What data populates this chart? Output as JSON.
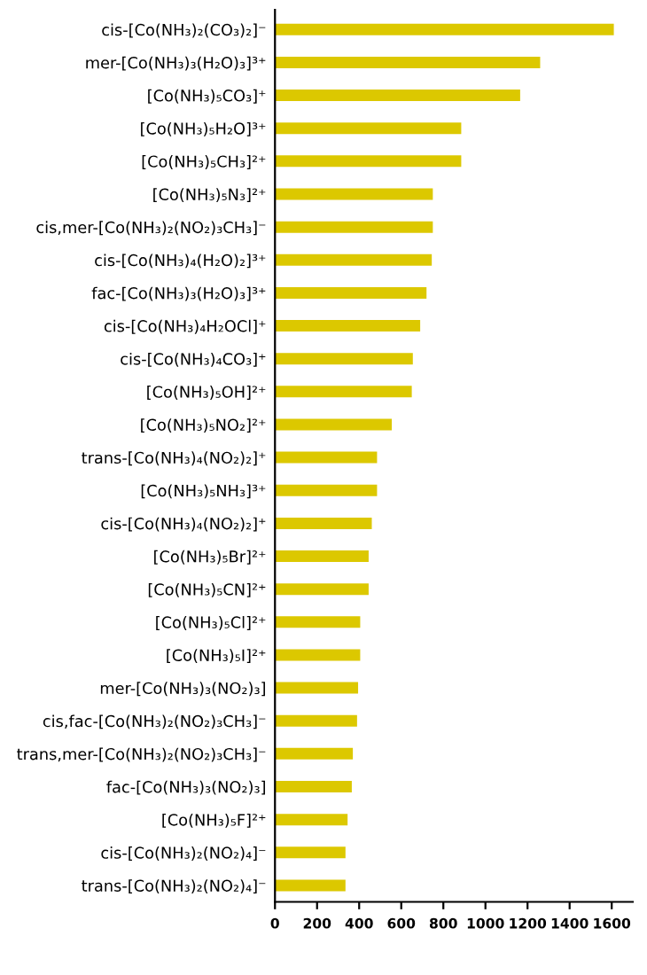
{
  "chart_data": {
    "type": "bar",
    "orientation": "horizontal",
    "color": "#dcc800",
    "categories": [
      "cis-[Co(NH₃)₂(CO₃)₂]⁻",
      "mer-[Co(NH₃)₃(H₂O)₃]³⁺",
      "[Co(NH₃)₅CO₃]⁺",
      "[Co(NH₃)₅H₂O]³⁺",
      "[Co(NH₃)₅CH₃]²⁺",
      "[Co(NH₃)₅N₃]²⁺",
      "cis,mer-[Co(NH₃)₂(NO₂)₃CH₃]⁻",
      "cis-[Co(NH₃)₄(H₂O)₂]³⁺",
      "fac-[Co(NH₃)₃(H₂O)₃]³⁺",
      "cis-[Co(NH₃)₄H₂OCl]⁺",
      "cis-[Co(NH₃)₄CO₃]⁺",
      "[Co(NH₃)₅OH]²⁺",
      "[Co(NH₃)₅NO₂]²⁺",
      "trans-[Co(NH₃)₄(NO₂)₂]⁺",
      "[Co(NH₃)₅NH₃]³⁺",
      "cis-[Co(NH₃)₄(NO₂)₂]⁺",
      "[Co(NH₃)₅Br]²⁺",
      "[Co(NH₃)₅CN]²⁺",
      "[Co(NH₃)₅Cl]²⁺",
      "[Co(NH₃)₅I]²⁺",
      "mer-[Co(NH₃)₃(NO₂)₃]",
      "cis,fac-[Co(NH₃)₂(NO₂)₃CH₃]⁻",
      "trans,mer-[Co(NH₃)₂(NO₂)₃CH₃]⁻",
      "fac-[Co(NH₃)₃(NO₂)₃]",
      "[Co(NH₃)₅F]²⁺",
      "cis-[Co(NH₃)₂(NO₂)₄]⁻",
      "trans-[Co(NH₃)₂(NO₂)₄]⁻"
    ],
    "values": [
      1610,
      1260,
      1165,
      885,
      885,
      750,
      750,
      745,
      720,
      690,
      655,
      650,
      555,
      485,
      485,
      460,
      445,
      445,
      405,
      405,
      395,
      390,
      370,
      365,
      345,
      335,
      335
    ],
    "xlim": [
      0,
      1700
    ],
    "xticks": [
      0,
      200,
      400,
      600,
      800,
      1000,
      1200,
      1400,
      1600
    ],
    "grid": false
  }
}
